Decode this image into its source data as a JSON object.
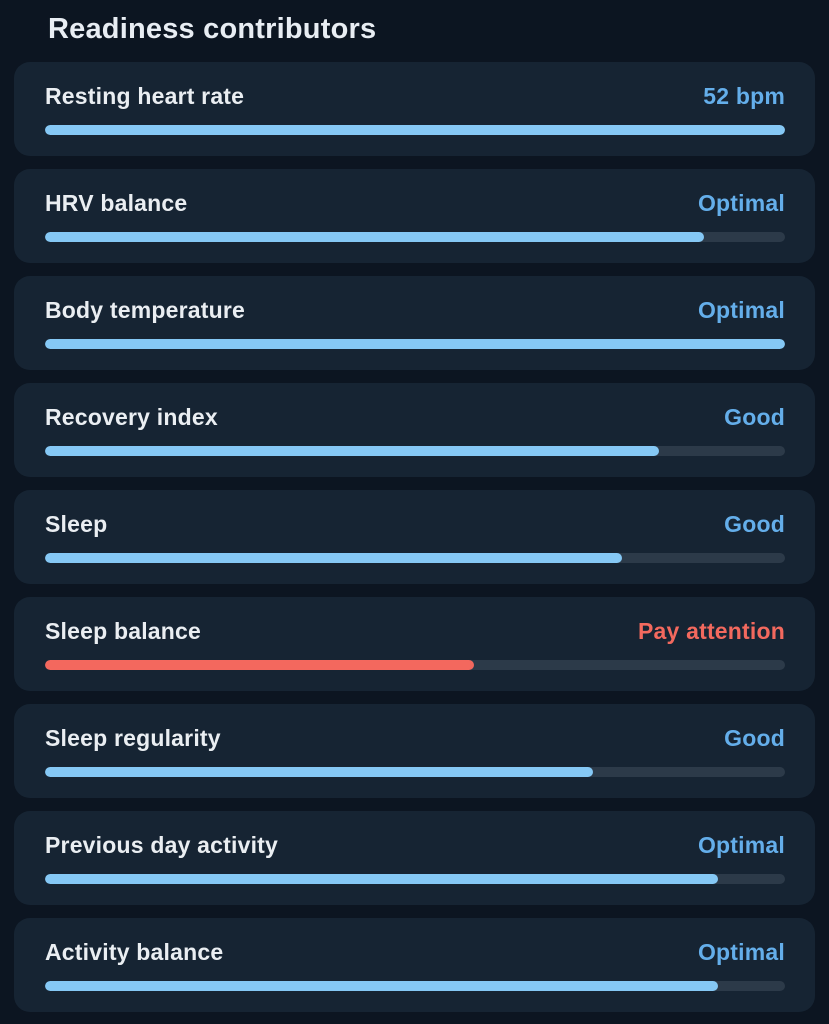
{
  "page": {
    "title": "Readiness contributors"
  },
  "colors": {
    "background": "#0c1521",
    "card_background": "#162433",
    "track": "#2c3a49",
    "bar_blue": "#85c8f5",
    "value_blue": "#64aeea",
    "alert_red": "#f3685e",
    "label_text": "#eaeef2"
  },
  "contributors": [
    {
      "label": "Resting heart rate",
      "value": "52 bpm",
      "status": "ok",
      "percent": 100
    },
    {
      "label": "HRV balance",
      "value": "Optimal",
      "status": "ok",
      "percent": 89
    },
    {
      "label": "Body temperature",
      "value": "Optimal",
      "status": "ok",
      "percent": 100
    },
    {
      "label": "Recovery index",
      "value": "Good",
      "status": "ok",
      "percent": 83
    },
    {
      "label": "Sleep",
      "value": "Good",
      "status": "ok",
      "percent": 78
    },
    {
      "label": "Sleep balance",
      "value": "Pay attention",
      "status": "alert",
      "percent": 58
    },
    {
      "label": "Sleep regularity",
      "value": "Good",
      "status": "ok",
      "percent": 74
    },
    {
      "label": "Previous day activity",
      "value": "Optimal",
      "status": "ok",
      "percent": 91
    },
    {
      "label": "Activity balance",
      "value": "Optimal",
      "status": "ok",
      "percent": 91
    }
  ]
}
